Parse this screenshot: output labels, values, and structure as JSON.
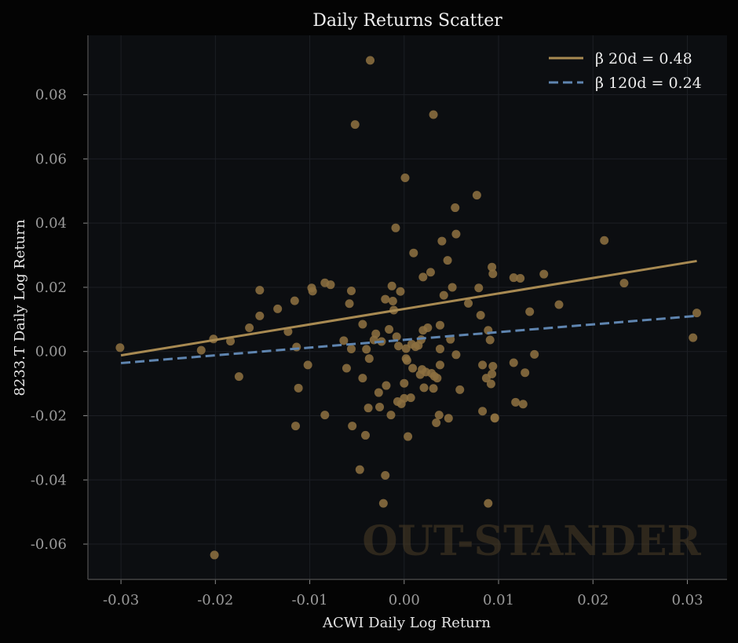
{
  "chart_data": {
    "type": "scatter",
    "title": "Daily Returns Scatter",
    "xlabel": "ACWI Daily Log Return",
    "ylabel": "8233.T Daily Log Return",
    "xlim": [
      -0.0335,
      0.0342
    ],
    "ylim": [
      -0.071,
      0.0985
    ],
    "grid": true,
    "legend_position": "top-right",
    "watermark": "OUT-STANDER",
    "x_ticks": [
      -0.03,
      -0.02,
      -0.01,
      0.0,
      0.01,
      0.02,
      0.03
    ],
    "x_tick_labels": [
      "-0.03",
      "-0.02",
      "-0.01",
      "0.00",
      "0.01",
      "0.02",
      "0.03"
    ],
    "y_ticks": [
      -0.06,
      -0.04,
      -0.02,
      0.0,
      0.02,
      0.04,
      0.06,
      0.08
    ],
    "y_tick_labels": [
      "-0.06",
      "-0.04",
      "-0.02",
      "0.00",
      "0.02",
      "0.04",
      "0.06",
      "0.08"
    ],
    "colors": {
      "points": "#8c7040",
      "beta20": "#a88a52",
      "beta120": "#5f85b0",
      "axes": "#444444",
      "grid": "#1c1f24",
      "plot_bg": "#0c0e11"
    },
    "lines": [
      {
        "name": "β 20d = 0.48",
        "style": "solid",
        "x": [
          -0.03,
          0.031
        ],
        "y": [
          -0.0012,
          0.0282
        ]
      },
      {
        "name": "β 120d = 0.24",
        "style": "dashed",
        "x": [
          -0.03,
          0.031
        ],
        "y": [
          -0.0036,
          0.0111
        ]
      }
    ],
    "points": [
      [
        -0.0301,
        0.0012
      ],
      [
        -0.0201,
        -0.0634
      ],
      [
        -0.0215,
        0.0004
      ],
      [
        -0.0202,
        0.0039
      ],
      [
        -0.0184,
        0.0032
      ],
      [
        -0.0175,
        -0.0078
      ],
      [
        -0.0164,
        0.0074
      ],
      [
        -0.0153,
        0.0191
      ],
      [
        -0.0153,
        0.0111
      ],
      [
        -0.0134,
        0.0133
      ],
      [
        -0.0123,
        0.0062
      ],
      [
        -0.0116,
        0.0158
      ],
      [
        -0.0114,
        0.0014
      ],
      [
        -0.0112,
        -0.0114
      ],
      [
        -0.0115,
        -0.0232
      ],
      [
        -0.0102,
        -0.0042
      ],
      [
        -0.0098,
        0.0198
      ],
      [
        -0.0097,
        0.0188
      ],
      [
        -0.0084,
        0.0214
      ],
      [
        -0.0084,
        -0.0198
      ],
      [
        -0.0078,
        0.0208
      ],
      [
        -0.0064,
        0.0034
      ],
      [
        -0.0061,
        -0.0052
      ],
      [
        -0.0058,
        0.0149
      ],
      [
        -0.0056,
        0.0189
      ],
      [
        -0.0056,
        0.0008
      ],
      [
        -0.0055,
        -0.0232
      ],
      [
        -0.0052,
        0.0707
      ],
      [
        -0.0047,
        -0.0368
      ],
      [
        -0.0044,
        0.0085
      ],
      [
        -0.0044,
        -0.0083
      ],
      [
        -0.0041,
        -0.0261
      ],
      [
        -0.004,
        0.0007
      ],
      [
        -0.0038,
        -0.0176
      ],
      [
        -0.0037,
        -0.0022
      ],
      [
        -0.0036,
        0.0907
      ],
      [
        -0.0032,
        0.0036
      ],
      [
        -0.003,
        0.0055
      ],
      [
        -0.0027,
        -0.0128
      ],
      [
        -0.0026,
        -0.0173
      ],
      [
        -0.0024,
        0.0031
      ],
      [
        -0.0022,
        -0.0473
      ],
      [
        -0.002,
        0.0163
      ],
      [
        -0.002,
        -0.0386
      ],
      [
        -0.0019,
        -0.0106
      ],
      [
        -0.0016,
        0.0069
      ],
      [
        -0.0014,
        -0.0198
      ],
      [
        -0.0013,
        0.0204
      ],
      [
        -0.0012,
        0.0157
      ],
      [
        -0.0011,
        0.0129
      ],
      [
        -0.0009,
        0.0385
      ],
      [
        -0.0008,
        0.0046
      ],
      [
        -0.0007,
        -0.0156
      ],
      [
        -0.0006,
        0.0017
      ],
      [
        -0.0004,
        0.0187
      ],
      [
        -0.0003,
        -0.0163
      ],
      [
        0.0,
        -0.0146
      ],
      [
        0.0,
        -0.0099
      ],
      [
        0.0001,
        0.0541
      ],
      [
        0.0002,
        0.0009
      ],
      [
        0.0002,
        -0.0022
      ],
      [
        0.0003,
        -0.0028
      ],
      [
        0.0004,
        -0.0265
      ],
      [
        0.0007,
        -0.0144
      ],
      [
        0.0008,
        0.0023
      ],
      [
        0.0009,
        -0.0052
      ],
      [
        0.001,
        0.0307
      ],
      [
        0.0012,
        0.0015
      ],
      [
        0.0015,
        0.0019
      ],
      [
        0.0017,
        -0.0072
      ],
      [
        0.0018,
        0.0037
      ],
      [
        0.0019,
        -0.0056
      ],
      [
        0.002,
        0.0066
      ],
      [
        0.002,
        0.0232
      ],
      [
        0.0021,
        -0.0113
      ],
      [
        0.0023,
        -0.0064
      ],
      [
        0.0025,
        0.0074
      ],
      [
        0.0028,
        0.0247
      ],
      [
        0.0029,
        -0.0068
      ],
      [
        0.0031,
        -0.0115
      ],
      [
        0.0031,
        0.0738
      ],
      [
        0.0032,
        -0.0077
      ],
      [
        0.0034,
        -0.0222
      ],
      [
        0.0035,
        -0.0083
      ],
      [
        0.0037,
        -0.0198
      ],
      [
        0.0038,
        0.0008
      ],
      [
        0.0038,
        0.0082
      ],
      [
        0.0038,
        -0.0042
      ],
      [
        0.004,
        0.0344
      ],
      [
        0.0042,
        0.0175
      ],
      [
        0.0046,
        0.0284
      ],
      [
        0.0047,
        -0.0208
      ],
      [
        0.0049,
        0.0038
      ],
      [
        0.0051,
        0.02
      ],
      [
        0.0054,
        0.0448
      ],
      [
        0.0055,
        -0.001
      ],
      [
        0.0055,
        0.0366
      ],
      [
        0.0059,
        -0.0119
      ],
      [
        0.0068,
        0.015
      ],
      [
        0.0077,
        0.0487
      ],
      [
        0.0079,
        0.0198
      ],
      [
        0.0081,
        0.0113
      ],
      [
        0.0083,
        -0.0186
      ],
      [
        0.0083,
        -0.0042
      ],
      [
        0.0087,
        -0.0083
      ],
      [
        0.0089,
        0.0066
      ],
      [
        0.0089,
        -0.0473
      ],
      [
        0.0091,
        0.0036
      ],
      [
        0.0092,
        -0.0101
      ],
      [
        0.0093,
        0.0263
      ],
      [
        0.0093,
        -0.007
      ],
      [
        0.0094,
        0.0242
      ],
      [
        0.0094,
        -0.0046
      ],
      [
        0.0096,
        -0.0208
      ],
      [
        0.0096,
        -0.0206
      ],
      [
        0.0116,
        0.023
      ],
      [
        0.0116,
        -0.0035
      ],
      [
        0.0118,
        -0.0158
      ],
      [
        0.0123,
        0.0228
      ],
      [
        0.0126,
        -0.0164
      ],
      [
        0.0128,
        -0.0066
      ],
      [
        0.0133,
        0.0124
      ],
      [
        0.0138,
        -0.0009
      ],
      [
        0.0148,
        0.0241
      ],
      [
        0.0164,
        0.0146
      ],
      [
        0.0212,
        0.0346
      ],
      [
        0.0233,
        0.0213
      ],
      [
        0.0306,
        0.0043
      ],
      [
        0.031,
        0.012
      ]
    ]
  }
}
